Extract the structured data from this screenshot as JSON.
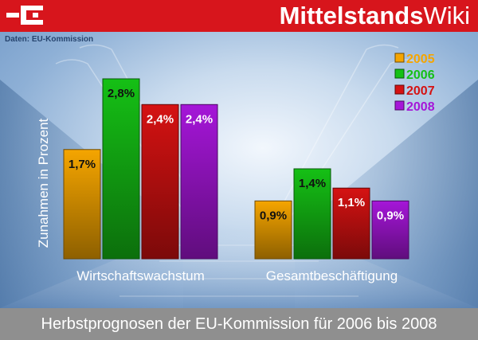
{
  "header": {
    "brand_bold": "Mittelstands",
    "brand_light": "Wiki"
  },
  "source": "Daten: EU-Kommission",
  "footer": {
    "caption": "Herbstprognosen der EU-Kommission für 2006 bis 2008"
  },
  "colors": {
    "header_red": "#d7151c",
    "footer_gray": "#8f8f8f"
  },
  "chart_data": {
    "type": "bar",
    "title": "",
    "ylabel": "Zunahmen in Prozent",
    "xlabel": "",
    "ylim": [
      0,
      2.8
    ],
    "categories": [
      "Wirtschaftswachstum",
      "Gesamtbeschäftigung"
    ],
    "legend_position": "top-right",
    "grid": false,
    "series": [
      {
        "name": "2005",
        "values": [
          1.7,
          0.9
        ],
        "labels": [
          "1,7%",
          "0,9%"
        ],
        "color": "#f5a500"
      },
      {
        "name": "2006",
        "values": [
          2.8,
          1.4
        ],
        "labels": [
          "2,8%",
          "1,4%"
        ],
        "color": "#15c015"
      },
      {
        "name": "2007",
        "values": [
          2.4,
          1.1
        ],
        "labels": [
          "2,4%",
          "1,1%"
        ],
        "color": "#d51212"
      },
      {
        "name": "2008",
        "values": [
          2.4,
          0.9
        ],
        "labels": [
          "2,4%",
          "0,9%"
        ],
        "color": "#a516d8"
      }
    ]
  }
}
